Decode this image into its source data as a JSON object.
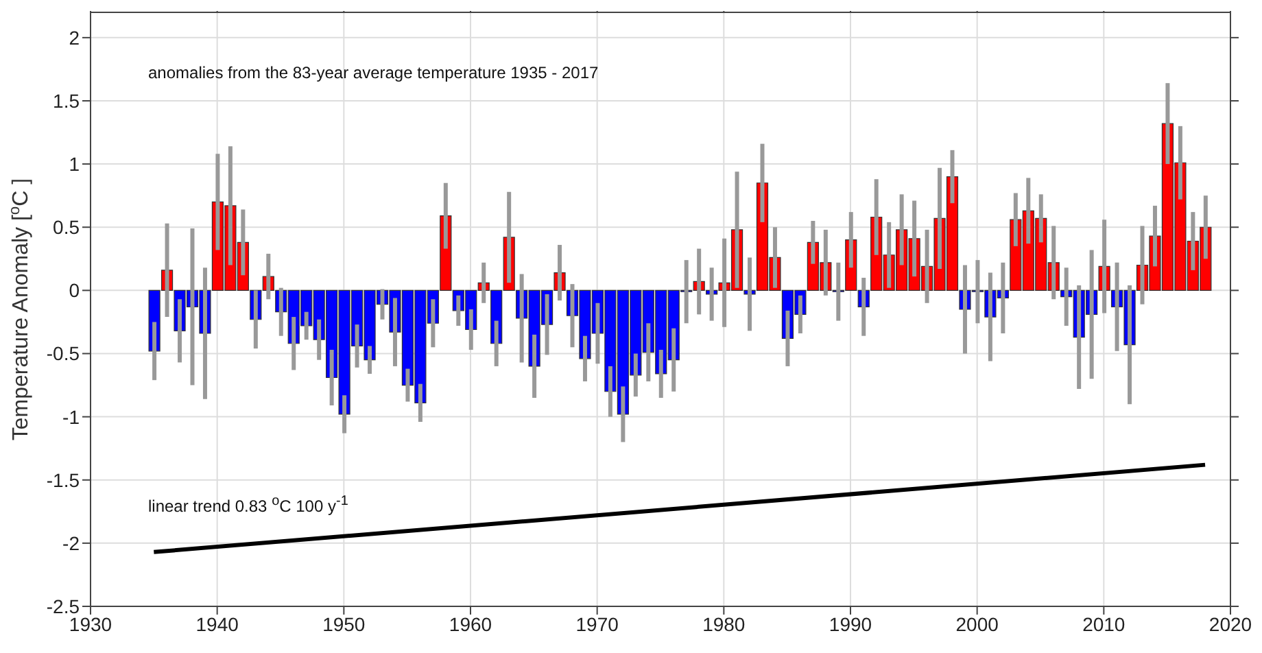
{
  "chart_data": {
    "type": "bar",
    "ylabel": "Temperature Anomaly  [$^{o}$C ]",
    "annotations": [
      "anomalies from the 83-year average temperature 1935 - 2017",
      "linear trend 0.83 $^{o}$C 100 y$^{-1}$"
    ],
    "xlim": [
      1930,
      2020
    ],
    "xticks": [
      1930,
      1940,
      1950,
      1960,
      1970,
      1980,
      1990,
      2000,
      2010,
      2020
    ],
    "ylim": [
      -2.5,
      2.2
    ],
    "yticks": [
      -2.5,
      -2,
      -1.5,
      -1,
      -0.5,
      0,
      0.5,
      1,
      1.5,
      2
    ],
    "grid": true,
    "x": [
      1935,
      1936,
      1937,
      1938,
      1939,
      1940,
      1941,
      1942,
      1943,
      1944,
      1945,
      1946,
      1947,
      1948,
      1949,
      1950,
      1951,
      1952,
      1953,
      1954,
      1955,
      1956,
      1957,
      1958,
      1959,
      1960,
      1961,
      1962,
      1963,
      1964,
      1965,
      1966,
      1967,
      1968,
      1969,
      1970,
      1971,
      1972,
      1973,
      1974,
      1975,
      1976,
      1977,
      1978,
      1979,
      1980,
      1981,
      1982,
      1983,
      1984,
      1985,
      1986,
      1987,
      1988,
      1989,
      1990,
      1991,
      1992,
      1993,
      1994,
      1995,
      1996,
      1997,
      1998,
      1999,
      2000,
      2001,
      2002,
      2003,
      2004,
      2005,
      2006,
      2007,
      2008,
      2009,
      2010,
      2011,
      2012,
      2013,
      2014,
      2015,
      2016,
      2017,
      2018
    ],
    "series": [
      {
        "values": [
          -0.48,
          0.16,
          -0.32,
          -0.13,
          -0.34,
          0.7,
          0.67,
          0.38,
          -0.23,
          0.11,
          -0.17,
          -0.42,
          -0.28,
          -0.39,
          -0.69,
          -0.98,
          -0.44,
          -0.55,
          -0.11,
          -0.33,
          -0.75,
          -0.89,
          -0.26,
          0.59,
          -0.16,
          -0.31,
          0.06,
          -0.42,
          0.42,
          -0.22,
          -0.6,
          -0.27,
          0.14,
          -0.2,
          -0.54,
          -0.34,
          -0.8,
          -0.98,
          -0.67,
          -0.49,
          -0.66,
          -0.55,
          -0.01,
          0.07,
          -0.03,
          0.06,
          0.48,
          -0.03,
          0.85,
          0.26,
          -0.38,
          -0.19,
          0.38,
          0.22,
          -0.01,
          0.4,
          -0.13,
          0.58,
          0.28,
          0.48,
          0.41,
          0.19,
          0.57,
          0.9,
          -0.15,
          -0.01,
          -0.21,
          -0.06,
          0.56,
          0.63,
          0.57,
          0.22,
          -0.05,
          -0.37,
          -0.19,
          0.19,
          -0.13,
          -0.43,
          0.2,
          0.43,
          1.32,
          1.01,
          0.39,
          0.5
        ],
        "errors": [
          0.23,
          0.37,
          0.25,
          0.62,
          0.52,
          0.38,
          0.47,
          0.26,
          0.23,
          0.18,
          0.19,
          0.21,
          0.11,
          0.16,
          0.22,
          0.15,
          0.17,
          0.11,
          0.12,
          0.27,
          0.13,
          0.15,
          0.19,
          0.26,
          0.12,
          0.16,
          0.16,
          0.18,
          0.36,
          0.35,
          0.25,
          0.24,
          0.22,
          0.25,
          0.18,
          0.24,
          0.2,
          0.22,
          0.17,
          0.23,
          0.19,
          0.25,
          0.25,
          0.26,
          0.21,
          0.35,
          0.46,
          0.29,
          0.31,
          0.24,
          0.22,
          0.15,
          0.17,
          0.26,
          0.23,
          0.22,
          0.23,
          0.3,
          0.26,
          0.28,
          0.3,
          0.29,
          0.4,
          0.21,
          0.35,
          0.25,
          0.35,
          0.28,
          0.21,
          0.26,
          0.19,
          0.29,
          0.23,
          0.41,
          0.51,
          0.37,
          0.35,
          0.47,
          0.31,
          0.24,
          0.32,
          0.29,
          0.23,
          0.25
        ],
        "colors": [
          "#0000ff",
          "#ff0000",
          "#0000ff",
          "#0000ff",
          "#0000ff",
          "#ff0000",
          "#ff0000",
          "#ff0000",
          "#0000ff",
          "#ff0000",
          "#0000ff",
          "#0000ff",
          "#0000ff",
          "#0000ff",
          "#0000ff",
          "#0000ff",
          "#0000ff",
          "#0000ff",
          "#0000ff",
          "#0000ff",
          "#0000ff",
          "#0000ff",
          "#0000ff",
          "#ff0000",
          "#0000ff",
          "#0000ff",
          "#ff0000",
          "#0000ff",
          "#ff0000",
          "#0000ff",
          "#0000ff",
          "#0000ff",
          "#ff0000",
          "#0000ff",
          "#0000ff",
          "#0000ff",
          "#0000ff",
          "#0000ff",
          "#0000ff",
          "#0000ff",
          "#0000ff",
          "#0000ff",
          "#0000ff",
          "#ff0000",
          "#0000ff",
          "#ff0000",
          "#ff0000",
          "#0000ff",
          "#ff0000",
          "#ff0000",
          "#0000ff",
          "#0000ff",
          "#ff0000",
          "#ff0000",
          "#0000ff",
          "#ff0000",
          "#0000ff",
          "#ff0000",
          "#ff0000",
          "#ff0000",
          "#ff0000",
          "#ff0000",
          "#ff0000",
          "#ff0000",
          "#0000ff",
          "#0000ff",
          "#0000ff",
          "#0000ff",
          "#ff0000",
          "#ff0000",
          "#ff0000",
          "#ff0000",
          "#0000ff",
          "#0000ff",
          "#0000ff",
          "#ff0000",
          "#0000ff",
          "#0000ff",
          "#ff0000",
          "#ff0000",
          "#ff0000",
          "#ff0000",
          "#ff0000",
          "#ff0000"
        ]
      },
      {
        "type": "line",
        "x": [
          1935,
          2018
        ],
        "values": [
          -2.07,
          -1.38
        ],
        "color": "#000000"
      }
    ]
  }
}
